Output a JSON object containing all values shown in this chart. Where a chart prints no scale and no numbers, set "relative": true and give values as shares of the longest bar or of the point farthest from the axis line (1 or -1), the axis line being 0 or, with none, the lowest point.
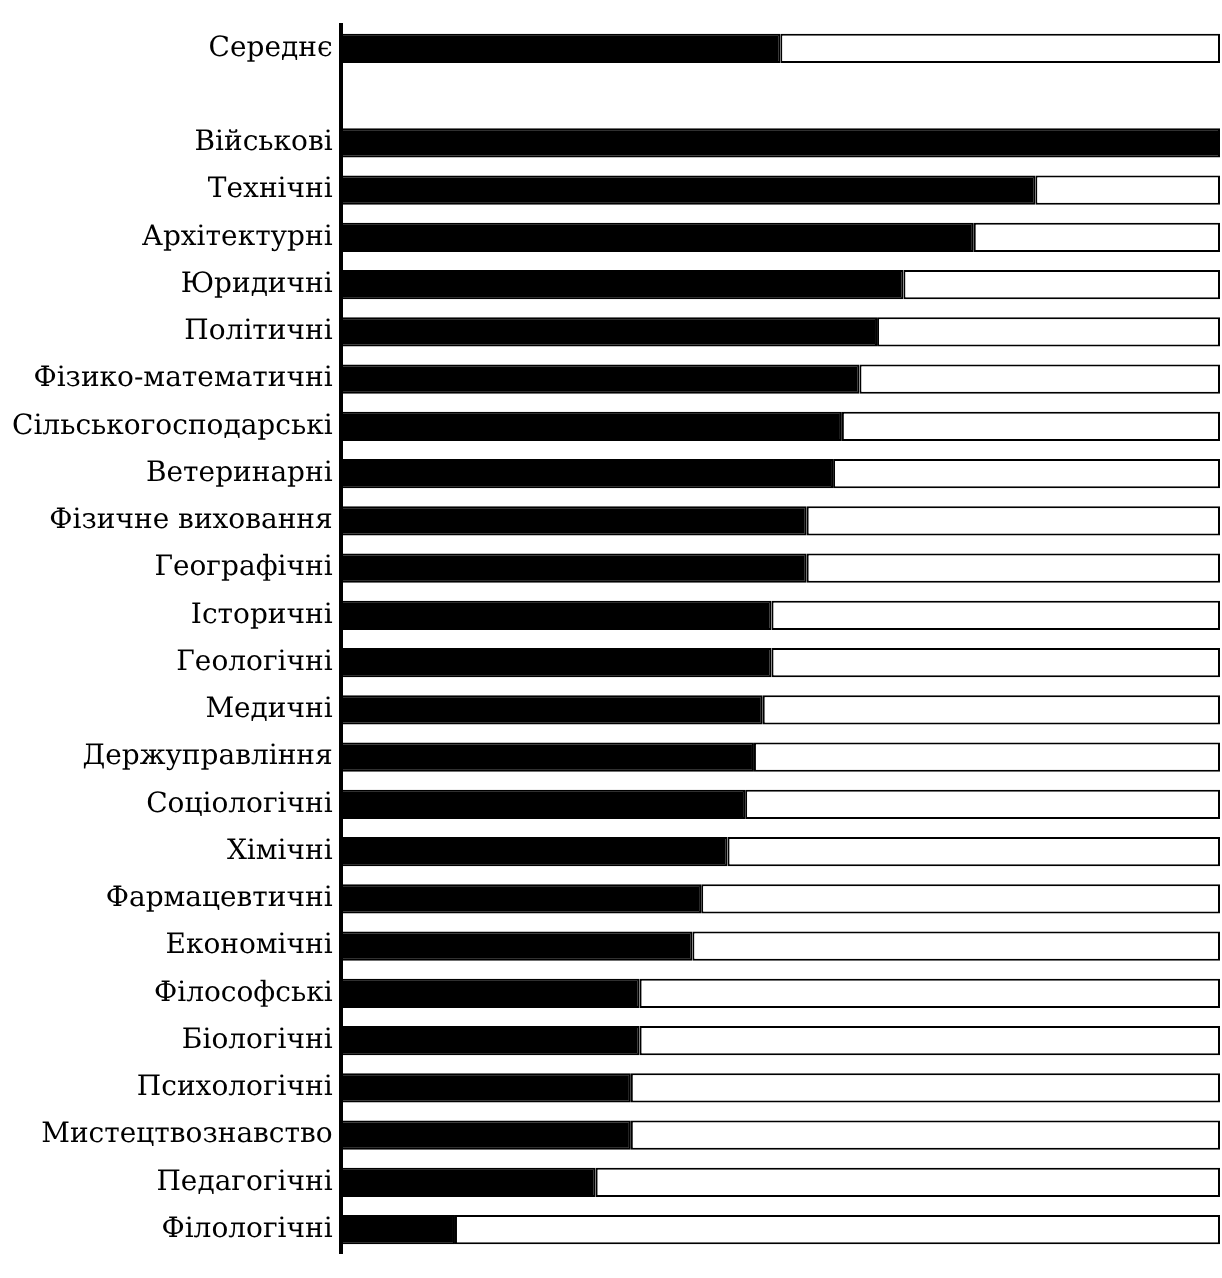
{
  "chart_data": {
    "type": "bar",
    "orientation": "horizontal",
    "stacked": true,
    "relative": true,
    "legend": false,
    "grid": false,
    "categories": [
      "Середнє",
      null,
      "Військові",
      "Технічні",
      "Архітектурні",
      "Юридичні",
      "Політичні",
      "Фізико-математичні",
      "Сільськогосподарські",
      "Ветеринарні",
      "Фізичне виховання",
      "Географічні",
      "Історичні",
      "Геологічні",
      "Медичні",
      "Держуправління",
      "Соціологічні",
      "Хімічні",
      "Фармацевтичні",
      "Економічні",
      "Філософські",
      "Біологічні",
      "Психологічні",
      "Мистецтвознавство",
      "Педагогічні",
      "Філологічні"
    ],
    "series": [
      {
        "color": "#000000",
        "values": [
          0.5,
          null,
          1,
          0.79,
          0.72,
          0.64,
          0.61,
          0.59,
          0.57,
          0.56,
          0.53,
          0.53,
          0.49,
          0.49,
          0.48,
          0.47,
          0.46,
          0.44,
          0.41,
          0.4,
          0.34,
          0.34,
          0.33,
          0.33,
          0.29,
          0.13
        ]
      },
      {
        "color": "#ffffff",
        "values": [
          0.5,
          null,
          0,
          0.21,
          0.28,
          0.36,
          0.39,
          0.41,
          0.43,
          0.44,
          0.47,
          0.47,
          0.51,
          0.51,
          0.52,
          0.53,
          0.54,
          0.56,
          0.59,
          0.6,
          0.66,
          0.66,
          0.67,
          0.67,
          0.71,
          0.87
        ]
      }
    ]
  }
}
